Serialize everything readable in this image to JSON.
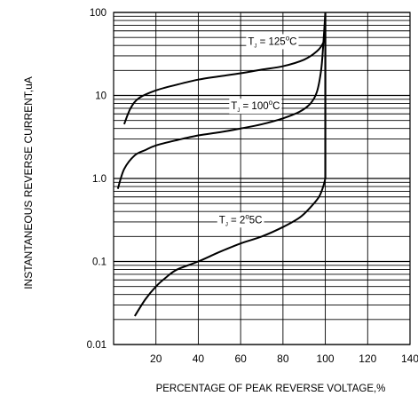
{
  "chart_data": {
    "type": "line",
    "title": "",
    "xlabel": "PERCENTAGE OF PEAK REVERSE VOLTAGE,%",
    "ylabel": "INSTANTANEOUS REVERSE CURRENT,uA",
    "xlim": [
      0,
      140
    ],
    "ylim": [
      0.01,
      100
    ],
    "yscale": "log",
    "grid": true,
    "x_ticks": [
      20,
      40,
      60,
      80,
      100,
      120,
      140
    ],
    "x_tick_labels": [
      "20",
      "40",
      "60",
      "80",
      "100",
      "120",
      "140"
    ],
    "y_ticks": [
      0.01,
      0.1,
      1.0,
      10,
      100
    ],
    "y_tick_labels": [
      "0.01",
      "0.1",
      "1.0",
      "10",
      "100"
    ],
    "series": [
      {
        "name": "Tj = 125°C",
        "label_parts": {
          "t": "T",
          "sub": "J",
          "rest": " = 125",
          "deg": "o",
          "unit": "C"
        },
        "label_at": [
          75,
          45
        ],
        "points": [
          [
            5,
            4.5
          ],
          [
            8,
            7
          ],
          [
            12,
            9.3
          ],
          [
            20,
            11.5
          ],
          [
            30,
            13.5
          ],
          [
            40,
            15.5
          ],
          [
            50,
            17
          ],
          [
            60,
            18.5
          ],
          [
            70,
            20.5
          ],
          [
            80,
            22.5
          ],
          [
            90,
            27
          ],
          [
            96,
            34
          ],
          [
            99,
            43
          ],
          [
            100,
            55
          ]
        ]
      },
      {
        "name": "Tj = 100°C",
        "label_parts": {
          "t": "T",
          "sub": "J",
          "rest": " = 100",
          "deg": "o",
          "unit": "C"
        },
        "label_at": [
          67,
          7.5
        ],
        "points": [
          [
            2,
            0.75
          ],
          [
            5,
            1.3
          ],
          [
            10,
            1.9
          ],
          [
            15,
            2.2
          ],
          [
            20,
            2.5
          ],
          [
            30,
            2.9
          ],
          [
            40,
            3.3
          ],
          [
            50,
            3.6
          ],
          [
            60,
            4.0
          ],
          [
            70,
            4.5
          ],
          [
            80,
            5.3
          ],
          [
            88,
            6.4
          ],
          [
            93,
            8.0
          ],
          [
            96,
            11
          ],
          [
            98,
            20
          ],
          [
            99,
            40
          ],
          [
            100,
            100
          ]
        ]
      },
      {
        "name": "Tj = 25°C",
        "label_parts": {
          "t": "T",
          "sub": "J",
          "rest": " = 2",
          "deg": "o",
          "unit": "5C"
        },
        "label_at": [
          60,
          0.32
        ],
        "points": [
          [
            10,
            0.022
          ],
          [
            15,
            0.035
          ],
          [
            20,
            0.05
          ],
          [
            25,
            0.065
          ],
          [
            30,
            0.08
          ],
          [
            40,
            0.1
          ],
          [
            50,
            0.13
          ],
          [
            60,
            0.165
          ],
          [
            70,
            0.2
          ],
          [
            80,
            0.26
          ],
          [
            88,
            0.34
          ],
          [
            93,
            0.45
          ],
          [
            97,
            0.6
          ],
          [
            99,
            0.8
          ],
          [
            100,
            1.0
          ]
        ]
      }
    ]
  }
}
